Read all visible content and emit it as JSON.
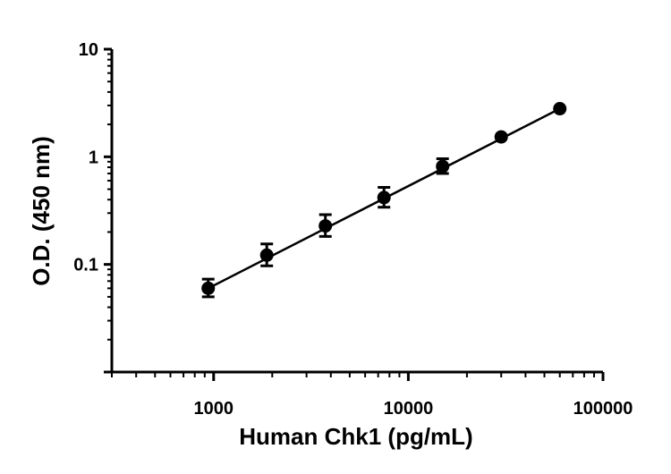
{
  "chart_data": {
    "type": "scatter",
    "title": "",
    "xlabel": "Human Chk1 (pg/mL)",
    "ylabel": "O.D. (450 nm)",
    "xscale": "log",
    "yscale": "log",
    "xlim": [
      300,
      100000
    ],
    "ylim": [
      0.01,
      10
    ],
    "x_ticks": [
      {
        "value": 1000,
        "label": "1000"
      },
      {
        "value": 10000,
        "label": "10000"
      },
      {
        "value": 100000,
        "label": "100000"
      }
    ],
    "y_ticks": [
      {
        "value": 0.1,
        "label": "0.1"
      },
      {
        "value": 1,
        "label": "1"
      },
      {
        "value": 10,
        "label": "10"
      }
    ],
    "grid": false,
    "legend": "none",
    "points": [
      {
        "x": 938,
        "y": 0.06,
        "err_low": 0.05,
        "err_high": 0.073
      },
      {
        "x": 1875,
        "y": 0.122,
        "err_low": 0.097,
        "err_high": 0.155
      },
      {
        "x": 3750,
        "y": 0.228,
        "err_low": 0.182,
        "err_high": 0.29
      },
      {
        "x": 7500,
        "y": 0.418,
        "err_low": 0.34,
        "err_high": 0.52
      },
      {
        "x": 15000,
        "y": 0.815,
        "err_low": 0.7,
        "err_high": 0.96
      },
      {
        "x": 30000,
        "y": 1.53
      },
      {
        "x": 60000,
        "y": 2.8
      }
    ],
    "fit_line": {
      "x_start": 938,
      "y_start": 0.06,
      "x_end": 60000,
      "y_end": 2.8
    },
    "color": "#000000"
  }
}
